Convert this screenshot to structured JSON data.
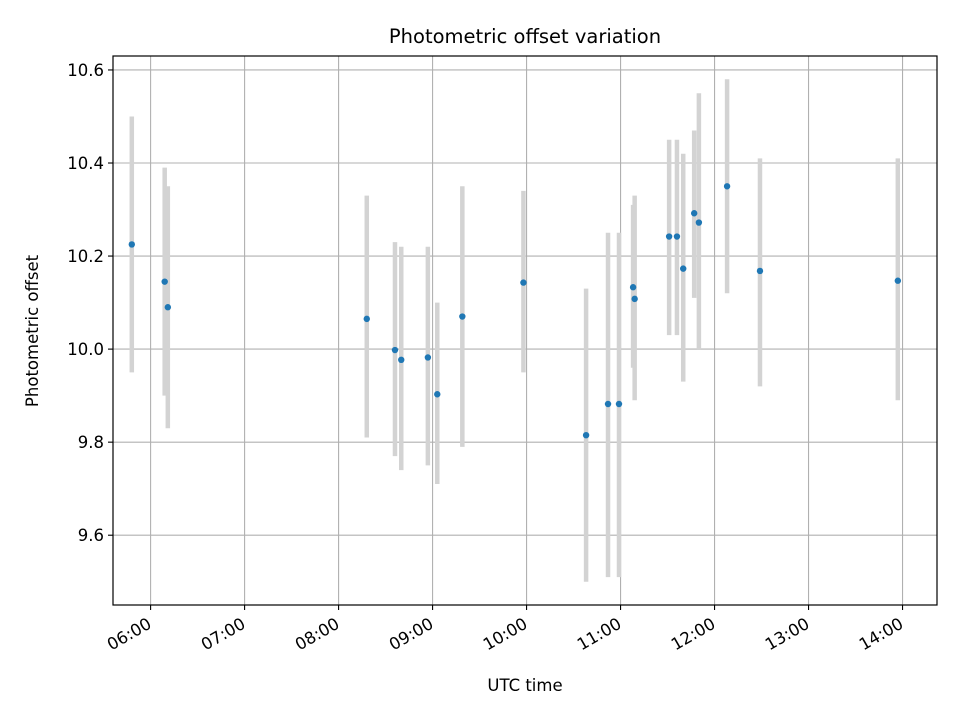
{
  "chart_data": {
    "type": "scatter",
    "title": "Photometric offset variation",
    "xlabel": "UTC time",
    "ylabel": "Photometric offset",
    "xlim": [
      "05:36",
      "14:22"
    ],
    "ylim": [
      9.45,
      10.63
    ],
    "grid": true,
    "x_ticks": [
      "06:00",
      "07:00",
      "08:00",
      "09:00",
      "10:00",
      "11:00",
      "12:00",
      "13:00",
      "14:00"
    ],
    "y_ticks": [
      "9.6",
      "9.8",
      "10.0",
      "10.2",
      "10.4",
      "10.6"
    ],
    "colors": {
      "point": "#1f77b4",
      "errorbar": "#d3d3d3",
      "grid": "#b0b0b0"
    },
    "points": [
      {
        "x": "05:48",
        "y": 10.225,
        "ylo": 9.95,
        "yhi": 10.5
      },
      {
        "x": "06:09",
        "y": 10.145,
        "ylo": 9.9,
        "yhi": 10.39
      },
      {
        "x": "06:11",
        "y": 10.09,
        "ylo": 9.83,
        "yhi": 10.35
      },
      {
        "x": "08:18",
        "y": 10.065,
        "ylo": 9.81,
        "yhi": 10.33
      },
      {
        "x": "08:36",
        "y": 9.998,
        "ylo": 9.77,
        "yhi": 10.23
      },
      {
        "x": "08:40",
        "y": 9.977,
        "ylo": 9.74,
        "yhi": 10.22
      },
      {
        "x": "08:57",
        "y": 9.982,
        "ylo": 9.75,
        "yhi": 10.22
      },
      {
        "x": "09:03",
        "y": 9.903,
        "ylo": 9.71,
        "yhi": 10.1
      },
      {
        "x": "09:19",
        "y": 10.07,
        "ylo": 9.79,
        "yhi": 10.35
      },
      {
        "x": "09:58",
        "y": 10.143,
        "ylo": 9.95,
        "yhi": 10.34
      },
      {
        "x": "10:38",
        "y": 9.815,
        "ylo": 9.5,
        "yhi": 10.13
      },
      {
        "x": "10:52",
        "y": 9.882,
        "ylo": 9.51,
        "yhi": 10.25
      },
      {
        "x": "10:59",
        "y": 9.882,
        "ylo": 9.51,
        "yhi": 10.25
      },
      {
        "x": "11:08",
        "y": 10.133,
        "ylo": 9.96,
        "yhi": 10.31
      },
      {
        "x": "11:09",
        "y": 10.108,
        "ylo": 9.89,
        "yhi": 10.33
      },
      {
        "x": "11:31",
        "y": 10.242,
        "ylo": 10.03,
        "yhi": 10.45
      },
      {
        "x": "11:36",
        "y": 10.242,
        "ylo": 10.03,
        "yhi": 10.45
      },
      {
        "x": "11:40",
        "y": 10.173,
        "ylo": 9.93,
        "yhi": 10.42
      },
      {
        "x": "11:47",
        "y": 10.292,
        "ylo": 10.11,
        "yhi": 10.47
      },
      {
        "x": "11:50",
        "y": 10.272,
        "ylo": 10.0,
        "yhi": 10.55
      },
      {
        "x": "12:08",
        "y": 10.35,
        "ylo": 10.12,
        "yhi": 10.58
      },
      {
        "x": "12:29",
        "y": 10.168,
        "ylo": 9.92,
        "yhi": 10.41
      },
      {
        "x": "13:57",
        "y": 10.147,
        "ylo": 9.89,
        "yhi": 10.41
      }
    ]
  }
}
